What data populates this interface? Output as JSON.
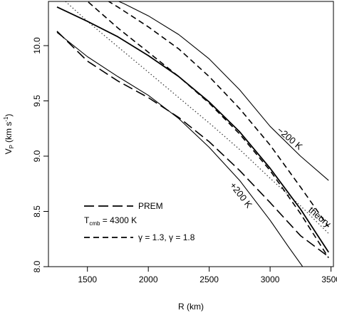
{
  "chart_data": {
    "type": "line",
    "xlabel": "R (km)",
    "ylabel": "V",
    "ylabel_sub": "P",
    "ylabel_unit_open": "(km s",
    "ylabel_unit_exp": "-1",
    "ylabel_unit_close": ")",
    "xlim": [
      1180,
      3520
    ],
    "ylim": [
      8.0,
      10.4
    ],
    "xticks": [
      1500,
      2000,
      2500,
      3000,
      3500
    ],
    "xtick_labels": [
      "1500",
      "2000",
      "2500",
      "3000",
      "3500"
    ],
    "yticks": [
      8.0,
      8.5,
      9.0,
      9.5,
      10.0
    ],
    "ytick_labels": [
      "8.0",
      "8.5",
      "9.0",
      "9.5",
      "10.0"
    ],
    "grid": false,
    "legend_position": "bottom-left",
    "legend": {
      "prem_label": "PREM",
      "tcmb_main": "T",
      "tcmb_sub": "cmb",
      "tcmb_value": " = 4300 K",
      "gamma_label": "γ = 1.3, γ = 1.8"
    },
    "annotations": {
      "minus200": "−200 K",
      "plus200": "+200 K",
      "theory": "theory"
    },
    "series": [
      {
        "style": "solid-thick",
        "x": [
          1250,
          1500,
          1750,
          2000,
          2250,
          2500,
          2750,
          3000,
          3250,
          3480
        ],
        "y": [
          10.35,
          10.22,
          10.08,
          9.91,
          9.72,
          9.49,
          9.22,
          8.89,
          8.52,
          8.13
        ]
      },
      {
        "style": "solid",
        "x": [
          1650,
          1800,
          2000,
          2250,
          2500,
          2750,
          3000,
          3250,
          3480
        ],
        "y": [
          10.45,
          10.38,
          10.27,
          10.1,
          9.88,
          9.6,
          9.27,
          9.0,
          8.78
        ]
      },
      {
        "style": "solid",
        "x": [
          1250,
          1500,
          1750,
          2000,
          2250,
          2500,
          2750,
          3000,
          3150,
          3300
        ],
        "y": [
          10.12,
          9.9,
          9.72,
          9.55,
          9.34,
          9.08,
          8.78,
          8.42,
          8.18,
          7.95
        ]
      },
      {
        "style": "dotted",
        "x": [
          1300,
          1500,
          1750,
          2000,
          2250,
          2500,
          2750,
          3000,
          3250,
          3480
        ],
        "y": [
          10.42,
          10.22,
          9.99,
          9.76,
          9.53,
          9.3,
          9.06,
          8.8,
          8.55,
          8.3
        ]
      },
      {
        "style": "dashed-long",
        "x": [
          1250,
          1500,
          1750,
          2000,
          2250,
          2500,
          2750,
          3000,
          3250,
          3480
        ],
        "y": [
          10.13,
          9.86,
          9.68,
          9.53,
          9.35,
          9.13,
          8.87,
          8.58,
          8.28,
          8.09
        ]
      },
      {
        "style": "dashed",
        "x": [
          1600,
          1750,
          2000,
          2250,
          2500,
          2750,
          3000,
          3250,
          3480
        ],
        "y": [
          10.45,
          10.35,
          10.17,
          9.97,
          9.72,
          9.43,
          9.1,
          8.72,
          8.36
        ]
      },
      {
        "style": "dashed",
        "x": [
          1450,
          1750,
          2000,
          2250,
          2500,
          2750,
          3000,
          3250,
          3480
        ],
        "y": [
          10.45,
          10.16,
          9.94,
          9.72,
          9.48,
          9.2,
          8.87,
          8.48,
          8.08
        ]
      }
    ]
  }
}
